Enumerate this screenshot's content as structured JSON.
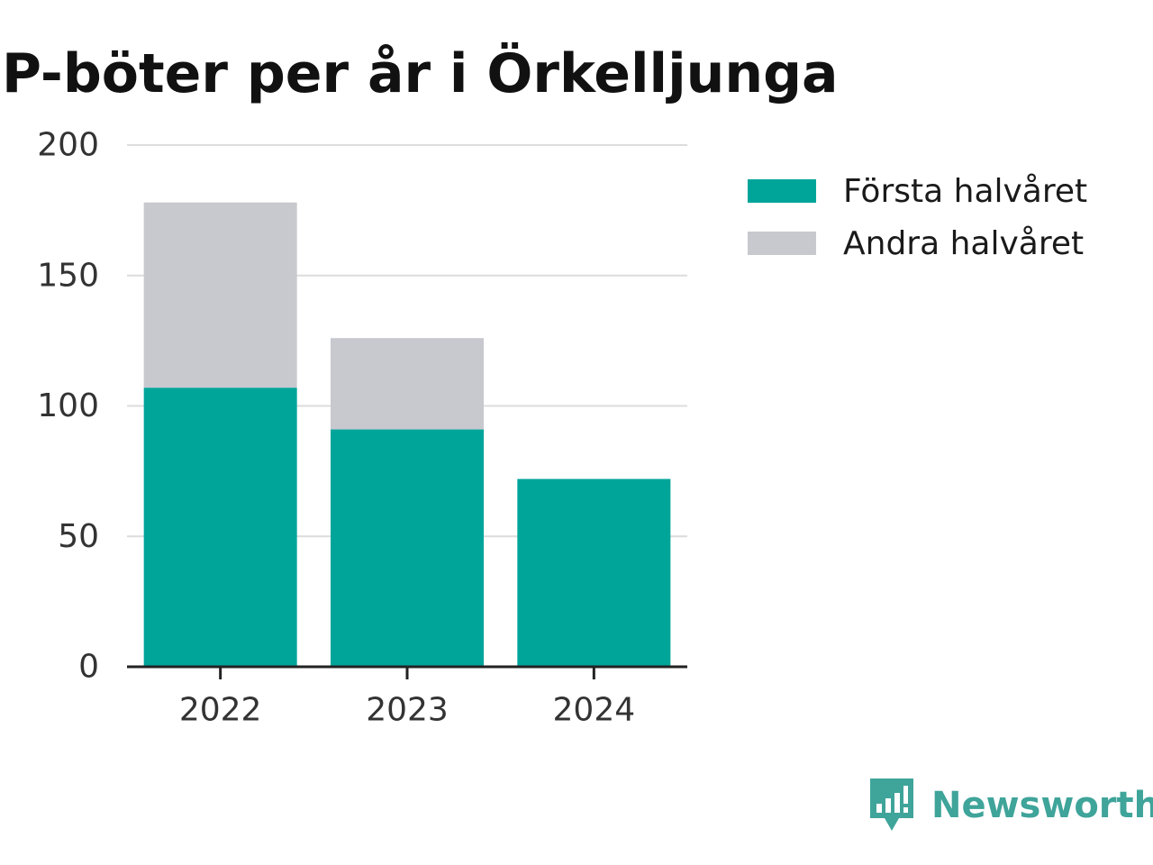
{
  "title": "P-böter per år i Örkelljunga",
  "chart_data": {
    "type": "bar",
    "stacked": true,
    "title": "P-böter per år i Örkelljunga",
    "categories": [
      "2022",
      "2023",
      "2024"
    ],
    "series": [
      {
        "name": "Första halvåret",
        "color": "#00a59a",
        "values": [
          107,
          91,
          72
        ]
      },
      {
        "name": "Andra halvåret",
        "color": "#c8c8cf",
        "values": [
          71,
          35,
          0
        ]
      }
    ],
    "yticks": [
      "0",
      "50",
      "100",
      "150",
      "200"
    ],
    "ylim": [
      0,
      200
    ],
    "grid": true,
    "legend_position": "right"
  },
  "legend": [
    {
      "label": "Första halvåret",
      "color": "#00a59a"
    },
    {
      "label": "Andra halvåret",
      "color": "#c8c8cf"
    }
  ],
  "brand": {
    "name": "Newsworthy",
    "icon": "bar-chart-speech-bubble-icon",
    "color": "#3fa49a"
  }
}
